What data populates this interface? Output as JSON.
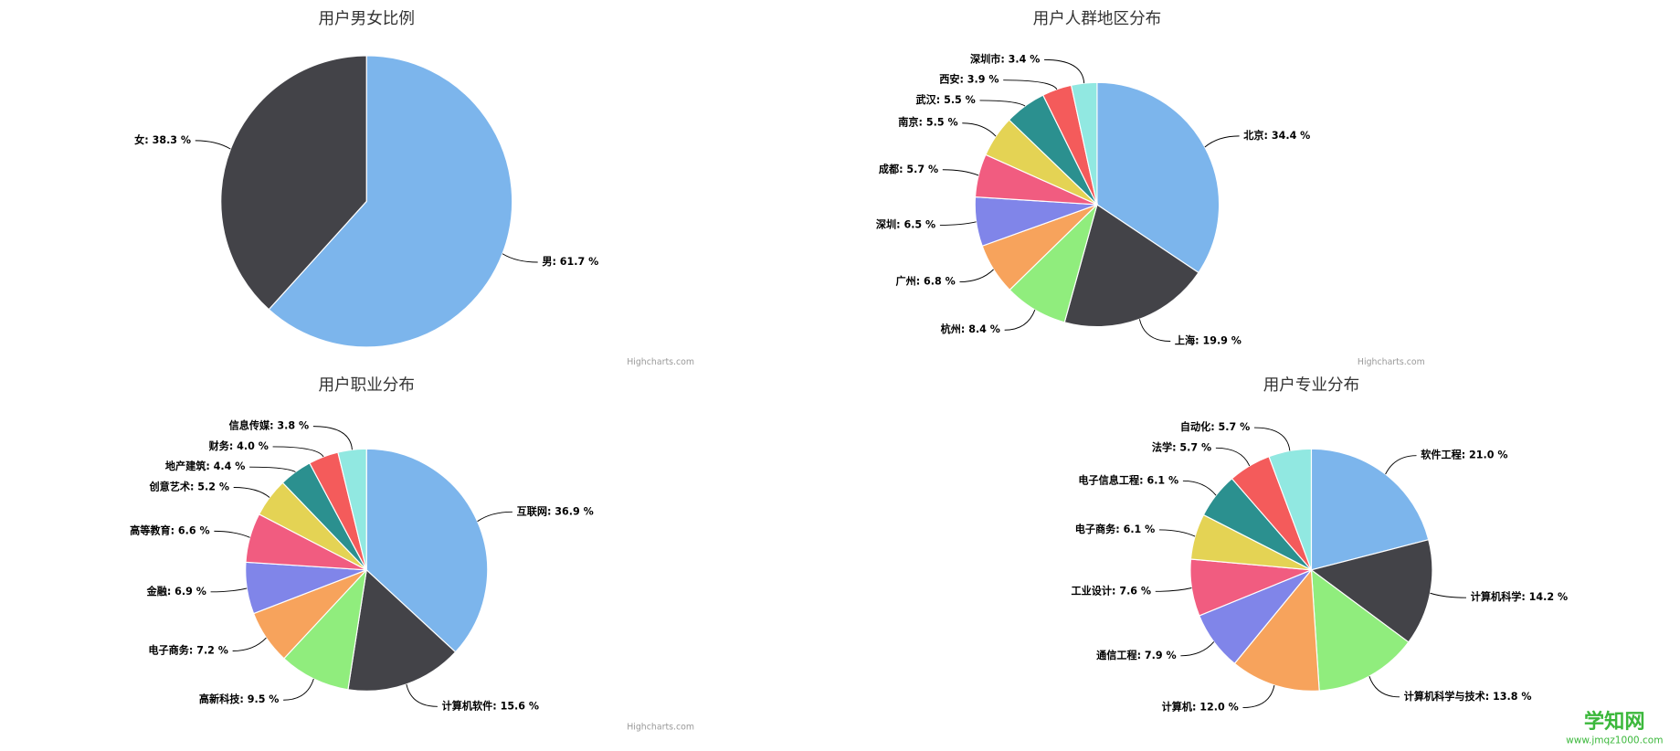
{
  "chart_data": [
    {
      "type": "pie",
      "title": "用户男女比例",
      "credits": "Highcharts.com",
      "categories": [
        "男",
        "女"
      ],
      "values": [
        61.7,
        38.3
      ],
      "value_labels": [
        "男: 61.7 %",
        "女: 38.3 %"
      ],
      "colors": [
        "#7cb5ec",
        "#434348"
      ]
    },
    {
      "type": "pie",
      "title": "用户人群地区分布",
      "credits": "Highcharts.com",
      "categories": [
        "北京",
        "上海",
        "杭州",
        "广州",
        "深圳",
        "成都",
        "南京",
        "武汉",
        "西安",
        "深圳市"
      ],
      "values": [
        34.4,
        19.9,
        8.4,
        6.8,
        6.5,
        5.7,
        5.5,
        5.5,
        3.9,
        3.4
      ],
      "value_labels": [
        "北京: 34.4 %",
        "上海: 19.9 %",
        "杭州: 8.4 %",
        "广州: 6.8 %",
        "深圳: 6.5 %",
        "成都: 5.7 %",
        "南京: 5.5 %",
        "武汉: 5.5 %",
        "西安: 3.9 %",
        "深圳市: 3.4 %"
      ],
      "colors": [
        "#7cb5ec",
        "#434348",
        "#90ed7d",
        "#f7a35c",
        "#8085e9",
        "#f15c80",
        "#e4d354",
        "#2b908f",
        "#f45b5b",
        "#91e8e1"
      ]
    },
    {
      "type": "pie",
      "title": "用户职业分布",
      "credits": "Highcharts.com",
      "categories": [
        "互联网",
        "计算机软件",
        "高新科技",
        "电子商务",
        "金融",
        "高等教育",
        "创意艺术",
        "地产建筑",
        "财务",
        "信息传媒"
      ],
      "values": [
        36.9,
        15.6,
        9.5,
        7.2,
        6.9,
        6.6,
        5.2,
        4.4,
        4.0,
        3.8
      ],
      "value_labels": [
        "互联网: 36.9 %",
        "计算机软件: 15.6 %",
        "高新科技: 9.5 %",
        "电子商务: 7.2 %",
        "金融: 6.9 %",
        "高等教育: 6.6 %",
        "创意艺术: 5.2 %",
        "地产建筑: 4.4 %",
        "财务: 4.0 %",
        "信息传媒: 3.8 %"
      ],
      "colors": [
        "#7cb5ec",
        "#434348",
        "#90ed7d",
        "#f7a35c",
        "#8085e9",
        "#f15c80",
        "#e4d354",
        "#2b908f",
        "#f45b5b",
        "#91e8e1"
      ]
    },
    {
      "type": "pie",
      "title": "用户专业分布",
      "categories": [
        "软件工程",
        "计算机科学",
        "计算机科学与技术",
        "计算机",
        "通信工程",
        "工业设计",
        "电子商务",
        "电子信息工程",
        "法学",
        "自动化"
      ],
      "values": [
        21.0,
        14.2,
        13.8,
        12.0,
        7.9,
        7.6,
        6.1,
        6.1,
        5.7,
        5.7
      ],
      "value_labels": [
        "软件工程: 21.0 %",
        "计算机科学: 14.2 %",
        "计算机科学与技术: 13.8 %",
        "计算机: 12.0 %",
        "通信工程: 7.9 %",
        "工业设计: 7.6 %",
        "电子商务: 6.1 %",
        "电子信息工程: 6.1 %",
        "法学: 5.7 %",
        "自动化: 5.7 %"
      ],
      "colors": [
        "#7cb5ec",
        "#434348",
        "#90ed7d",
        "#f7a35c",
        "#8085e9",
        "#f15c80",
        "#e4d354",
        "#2b908f",
        "#f45b5b",
        "#91e8e1"
      ]
    }
  ],
  "watermark": {
    "title": "学知网",
    "url": "www.jmqz1000.com"
  }
}
